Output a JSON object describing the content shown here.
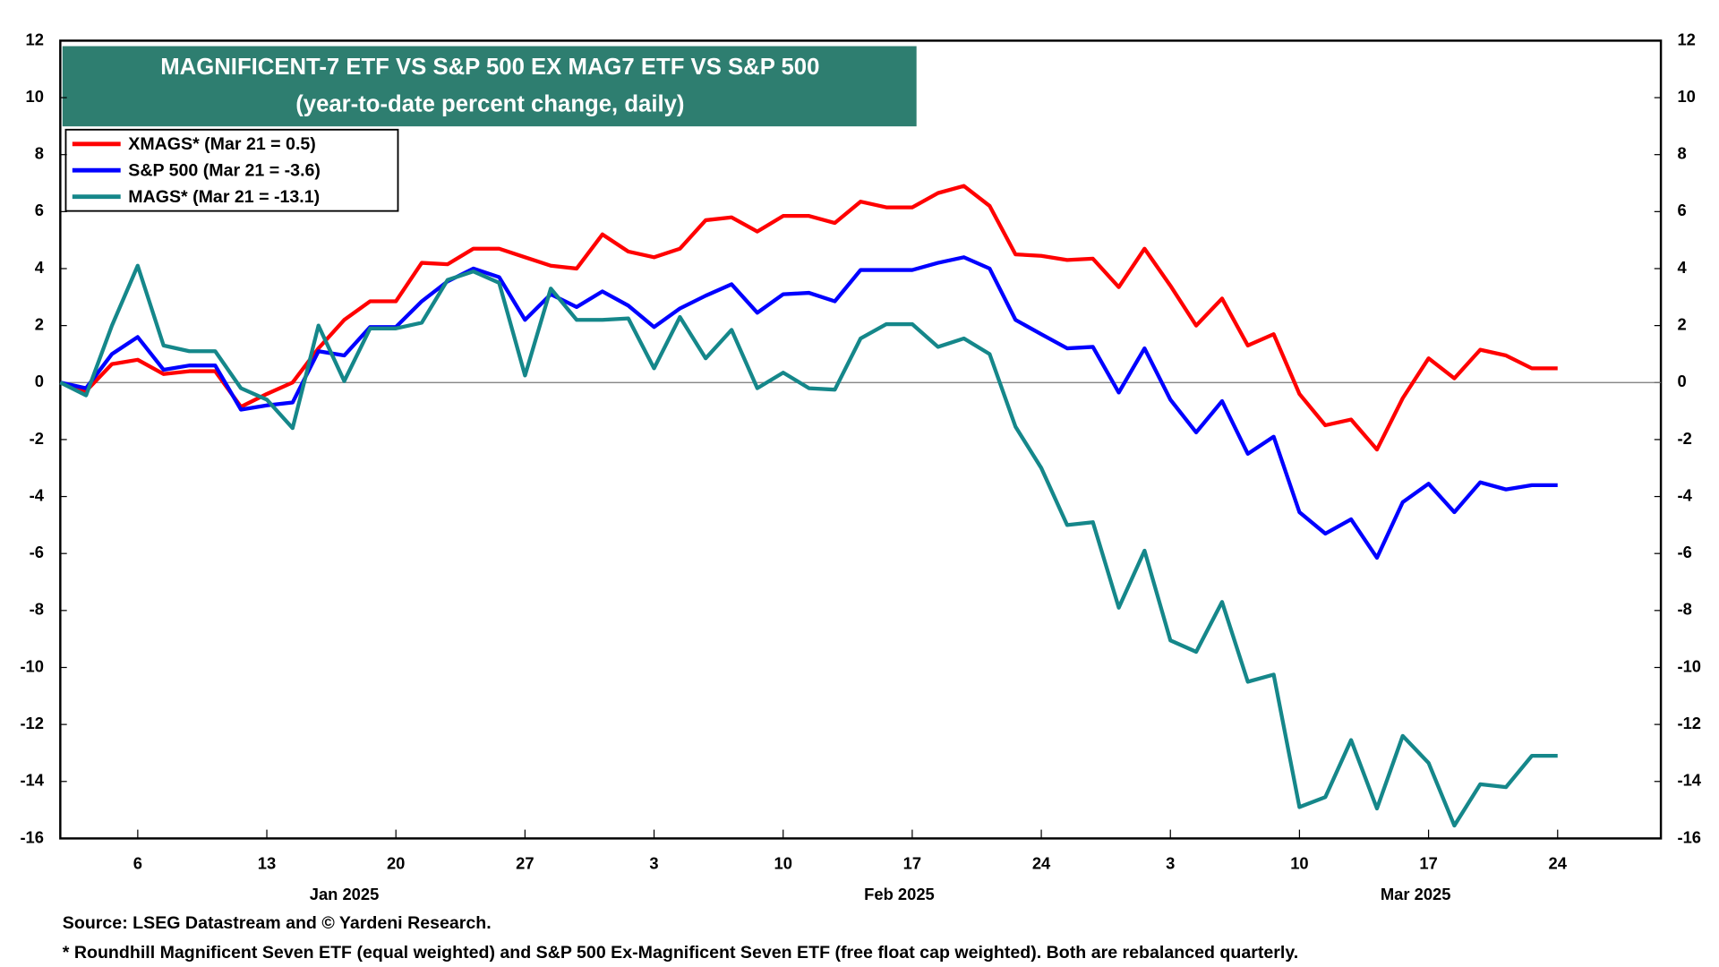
{
  "chart_data": {
    "type": "line",
    "title": "MAGNIFICENT-7 ETF VS S&P 500 EX MAG7 ETF VS S&P 500",
    "subtitle": "(year-to-date percent change, daily)",
    "source": "Source: LSEG Datastream and © Yardeni Research.",
    "note": "* Roundhill Magnificent Seven ETF (equal weighted) and S&P 500 Ex-Magnificent Seven ETF (free float cap weighted). Both are rebalanced quarterly.",
    "x": [
      "2025-01-01",
      "2025-01-02",
      "2025-01-03",
      "2025-01-06",
      "2025-01-07",
      "2025-01-08",
      "2025-01-09",
      "2025-01-10",
      "2025-01-13",
      "2025-01-14",
      "2025-01-15",
      "2025-01-16",
      "2025-01-17",
      "2025-01-20",
      "2025-01-21",
      "2025-01-22",
      "2025-01-23",
      "2025-01-24",
      "2025-01-27",
      "2025-01-28",
      "2025-01-29",
      "2025-01-30",
      "2025-01-31",
      "2025-02-03",
      "2025-02-04",
      "2025-02-05",
      "2025-02-06",
      "2025-02-07",
      "2025-02-10",
      "2025-02-11",
      "2025-02-12",
      "2025-02-13",
      "2025-02-14",
      "2025-02-17",
      "2025-02-18",
      "2025-02-19",
      "2025-02-20",
      "2025-02-21",
      "2025-02-24",
      "2025-02-25",
      "2025-02-26",
      "2025-02-27",
      "2025-02-28",
      "2025-03-03",
      "2025-03-04",
      "2025-03-05",
      "2025-03-06",
      "2025-03-07",
      "2025-03-10",
      "2025-03-11",
      "2025-03-12",
      "2025-03-13",
      "2025-03-14",
      "2025-03-17",
      "2025-03-18",
      "2025-03-19",
      "2025-03-20",
      "2025-03-21",
      "2025-03-24"
    ],
    "series": [
      {
        "name": "XMAGS* (Mar 21 = 0.5)",
        "color": "#ff0000",
        "values": [
          0,
          -0.3,
          0.65,
          0.8,
          0.3,
          0.4,
          0.4,
          -0.85,
          -0.4,
          0,
          1.2,
          2.2,
          2.85,
          2.85,
          4.2,
          4.15,
          4.7,
          4.7,
          4.4,
          4.1,
          4.0,
          5.2,
          4.6,
          4.4,
          4.7,
          5.7,
          5.8,
          5.3,
          5.85,
          5.85,
          5.6,
          6.35,
          6.15,
          6.15,
          6.65,
          6.9,
          6.2,
          4.5,
          4.45,
          4.3,
          4.35,
          3.35,
          4.7,
          3.4,
          2.0,
          2.95,
          1.3,
          1.7,
          -0.4,
          -1.5,
          -1.3,
          -2.35,
          -0.55,
          0.85,
          0.15,
          1.15,
          0.95,
          0.5,
          0.5
        ]
      },
      {
        "name": "S&P 500 (Mar 21 = -3.6)",
        "color": "#0000ff",
        "values": [
          0,
          -0.2,
          1.0,
          1.6,
          0.45,
          0.6,
          0.6,
          -0.95,
          -0.8,
          -0.7,
          1.1,
          0.95,
          1.95,
          1.95,
          2.85,
          3.55,
          4.0,
          3.7,
          2.2,
          3.1,
          2.65,
          3.2,
          2.7,
          1.95,
          2.6,
          3.05,
          3.45,
          2.45,
          3.1,
          3.15,
          2.85,
          3.95,
          3.95,
          3.95,
          4.2,
          4.4,
          4.0,
          2.2,
          1.7,
          1.2,
          1.25,
          -0.35,
          1.2,
          -0.6,
          -1.75,
          -0.65,
          -2.5,
          -1.9,
          -4.55,
          -5.3,
          -4.8,
          -6.15,
          -4.2,
          -3.55,
          -4.55,
          -3.5,
          -3.75,
          -3.6,
          -3.6
        ]
      },
      {
        "name": "MAGS* (Mar 21 = -13.1)",
        "color": "#15878a",
        "values": [
          0,
          -0.45,
          2.0,
          4.1,
          1.3,
          1.1,
          1.1,
          -0.2,
          -0.6,
          -1.6,
          2.0,
          0.05,
          1.9,
          1.9,
          2.1,
          3.6,
          3.9,
          3.5,
          0.25,
          3.3,
          2.2,
          2.2,
          2.25,
          0.5,
          2.3,
          0.85,
          1.85,
          -0.2,
          0.35,
          -0.2,
          -0.25,
          1.55,
          2.05,
          2.05,
          1.25,
          1.55,
          1.0,
          -1.55,
          -3.0,
          -5.0,
          -4.9,
          -7.9,
          -5.9,
          -9.05,
          -9.45,
          -7.7,
          -10.5,
          -10.25,
          -14.9,
          -14.55,
          -12.55,
          -14.95,
          -12.4,
          -13.35,
          -15.55,
          -14.1,
          -14.2,
          -13.1,
          -13.1
        ]
      }
    ],
    "xlim": [
      "2025-01-01",
      "2025-03-28"
    ],
    "xticks": [
      {
        "value": "2025-01-06",
        "label": "6"
      },
      {
        "value": "2025-01-13",
        "label": "13"
      },
      {
        "value": "2025-01-20",
        "label": "20"
      },
      {
        "value": "2025-01-27",
        "label": "27"
      },
      {
        "value": "2025-02-03",
        "label": "3"
      },
      {
        "value": "2025-02-10",
        "label": "10"
      },
      {
        "value": "2025-02-17",
        "label": "17"
      },
      {
        "value": "2025-02-24",
        "label": "24"
      },
      {
        "value": "2025-03-03",
        "label": "3"
      },
      {
        "value": "2025-03-10",
        "label": "10"
      },
      {
        "value": "2025-03-17",
        "label": "17"
      },
      {
        "value": "2025-03-24",
        "label": "24"
      }
    ],
    "month_labels": [
      {
        "value": "2025-01",
        "label": "Jan 2025"
      },
      {
        "value": "2025-02",
        "label": "Feb 2025"
      },
      {
        "value": "2025-03",
        "label": "Mar 2025"
      }
    ],
    "ylim": [
      -16,
      12
    ],
    "yticks": [
      -16,
      -14,
      -12,
      -10,
      -8,
      -6,
      -4,
      -2,
      0,
      2,
      4,
      6,
      8,
      10,
      12
    ],
    "y2lim": [
      -16,
      12
    ],
    "y2ticks": [
      -16,
      -14,
      -12,
      -10,
      -8,
      -6,
      -4,
      -2,
      0,
      2,
      4,
      6,
      8,
      10,
      12
    ],
    "zero_line": true,
    "title_color": "#2e7e70",
    "legend": "upper left"
  }
}
